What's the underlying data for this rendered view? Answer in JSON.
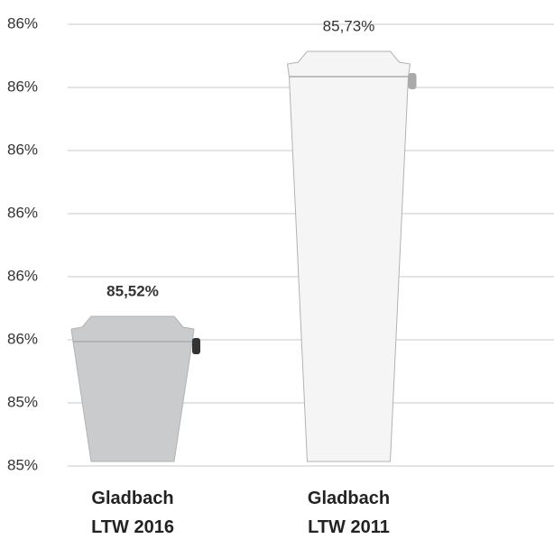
{
  "chart_data": {
    "type": "pictogram-bar",
    "categories": [
      "Gladbach LTW 2016",
      "Gladbach LTW 2011"
    ],
    "values": [
      85.52,
      85.73
    ],
    "value_labels": [
      "85,52%",
      "85,73%"
    ],
    "colors": [
      "#c9cbcd",
      "#f5f5f5"
    ],
    "ylim": [
      85.4,
      85.75
    ],
    "yticks": [
      {
        "value": 85.4,
        "label": "85%"
      },
      {
        "value": 85.45,
        "label": "85%"
      },
      {
        "value": 85.5,
        "label": "86%"
      },
      {
        "value": 85.55,
        "label": "86%"
      },
      {
        "value": 85.6,
        "label": "86%"
      },
      {
        "value": 85.65,
        "label": "86%"
      },
      {
        "value": 85.7,
        "label": "86%"
      },
      {
        "value": 85.75,
        "label": "86%"
      }
    ],
    "grid": true
  }
}
